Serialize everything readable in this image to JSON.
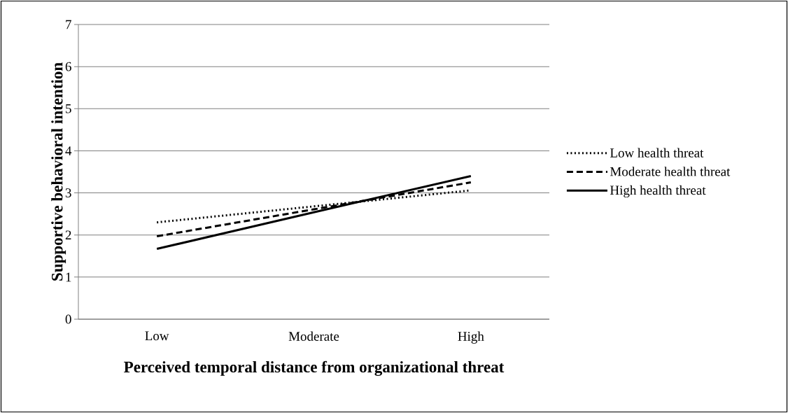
{
  "chart_data": {
    "type": "line",
    "xlabel": "Perceived temporal distance from organizational threat",
    "ylabel": "Supportive behavioral intention",
    "categories": [
      "Low",
      "Moderate",
      "High"
    ],
    "series": [
      {
        "name": "Low health threat",
        "color": "#000000",
        "line_style": "dotted",
        "values": [
          2.3,
          2.68,
          3.06
        ]
      },
      {
        "name": "Moderate health threat",
        "color": "#000000",
        "line_style": "dashed",
        "values": [
          1.97,
          2.61,
          3.25
        ]
      },
      {
        "name": "High health threat",
        "color": "#000000",
        "line_style": "solid",
        "values": [
          1.67,
          2.54,
          3.4
        ]
      }
    ],
    "ylim": [
      0,
      7
    ],
    "yticks": [
      0,
      1,
      2,
      3,
      4,
      5,
      6,
      7
    ],
    "grid": "y",
    "legend": "right"
  }
}
